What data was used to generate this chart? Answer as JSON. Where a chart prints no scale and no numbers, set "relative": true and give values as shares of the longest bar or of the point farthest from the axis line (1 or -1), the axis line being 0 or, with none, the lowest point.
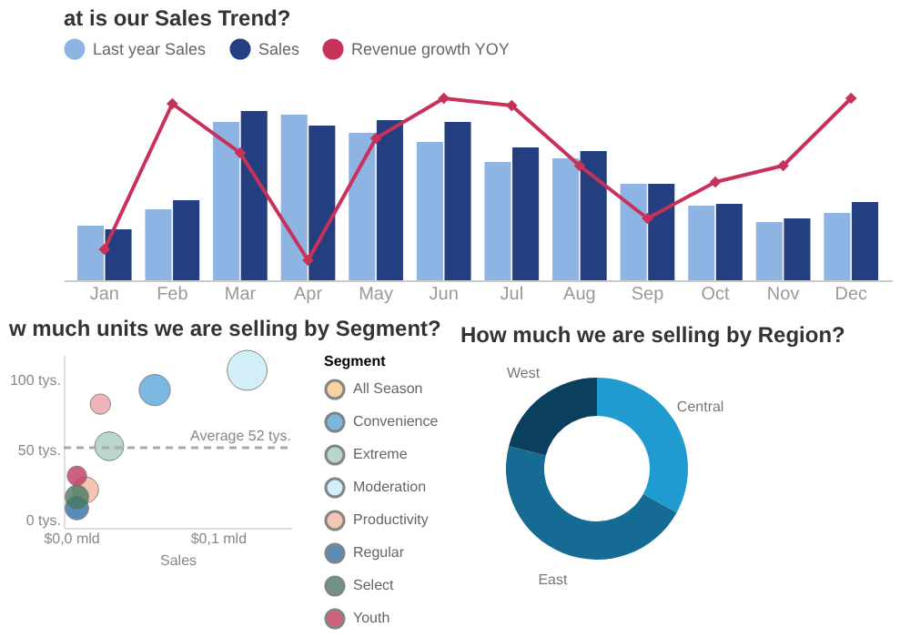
{
  "chart_data": [
    {
      "type": "bar",
      "title": "at is our Sales Trend?",
      "categories": [
        "Jan",
        "Feb",
        "Mar",
        "Apr",
        "May",
        "Jun",
        "Jul",
        "Aug",
        "Sep",
        "Oct",
        "Nov",
        "Dec"
      ],
      "relative": true,
      "legend": "top",
      "marker": "diamond",
      "series": [
        {
          "name": "Last year Sales",
          "color": "#8db4e2",
          "values": [
            0.3,
            0.39,
            0.87,
            0.91,
            0.81,
            0.76,
            0.65,
            0.67,
            0.53,
            0.41,
            0.32,
            0.37
          ]
        },
        {
          "name": "Sales",
          "color": "#243f7f",
          "values": [
            0.28,
            0.44,
            0.93,
            0.85,
            0.88,
            0.87,
            0.73,
            0.71,
            0.53,
            0.42,
            0.34,
            0.43
          ]
        },
        {
          "name": "Revenue growth YOY",
          "type": "line",
          "color": "#c8325a",
          "values": [
            0.17,
            0.97,
            0.7,
            0.11,
            0.78,
            1.0,
            0.96,
            0.63,
            0.34,
            0.54,
            0.63,
            1.0
          ]
        }
      ]
    },
    {
      "type": "bubble",
      "title": "w much units we are selling by Segment?",
      "xlabel": "Sales",
      "legend_title": "Segment",
      "legend": "right",
      "xlim": [
        -0.005,
        0.15
      ],
      "xticks": [
        {
          "value": 0,
          "label": "$0,0 mld"
        },
        {
          "value": 0.1,
          "label": "$0,1 mld"
        }
      ],
      "ylim": [
        -5,
        118
      ],
      "yticks": [
        {
          "value": 0,
          "label": "0 tys."
        },
        {
          "value": 50,
          "label": "50 tys."
        },
        {
          "value": 100,
          "label": "100 tys."
        }
      ],
      "ref_lines": [
        {
          "axis": "y",
          "value": 52,
          "label": "Average 52 tys.",
          "line_style": "dashed",
          "color": "#aaaaaa"
        }
      ],
      "series": [
        {
          "name": "All Season",
          "color": "#f5c98a",
          "x": [
            null
          ],
          "values": [
            null
          ],
          "sizes": [
            null
          ]
        },
        {
          "name": "Convenience",
          "color": "#5aa7d8",
          "x": [
            0.057
          ],
          "values": [
            93
          ],
          "sizes": [
            0.61
          ]
        },
        {
          "name": "Extreme",
          "color": "#a9cbbd",
          "x": [
            0.026
          ],
          "values": [
            53
          ],
          "sizes": [
            0.53
          ]
        },
        {
          "name": "Moderation",
          "color": "#c6ebf8",
          "x": [
            0.12
          ],
          "values": [
            107
          ],
          "sizes": [
            1
          ]
        },
        {
          "name": "Productivity",
          "color": "#f2b9a0",
          "x": [
            0.01
          ],
          "values": [
            22
          ],
          "sizes": [
            0.42
          ]
        },
        {
          "name": "Regular",
          "color": "#2f6fa3",
          "x": [
            0.004
          ],
          "values": [
            9
          ],
          "sizes": [
            0.35
          ]
        },
        {
          "name": "Select",
          "color": "#4a7a62",
          "x": [
            0.004
          ],
          "values": [
            17
          ],
          "sizes": [
            0.35
          ]
        },
        {
          "name": "Youth",
          "color": "#c23a5e",
          "x": [
            0.004
          ],
          "values": [
            32
          ],
          "sizes": [
            0.24
          ]
        },
        {
          "color": "#e9a2aa",
          "x": [
            0.02
          ],
          "values": [
            83
          ],
          "sizes": [
            0.26
          ]
        }
      ]
    },
    {
      "type": "donut",
      "title": "How much we are selling by Region?",
      "categories": [
        "Central",
        "East",
        "West"
      ],
      "values": [
        33,
        46,
        21
      ],
      "colors": [
        "#1f9bd0",
        "#156b93",
        "#0a3f5e"
      ]
    }
  ]
}
